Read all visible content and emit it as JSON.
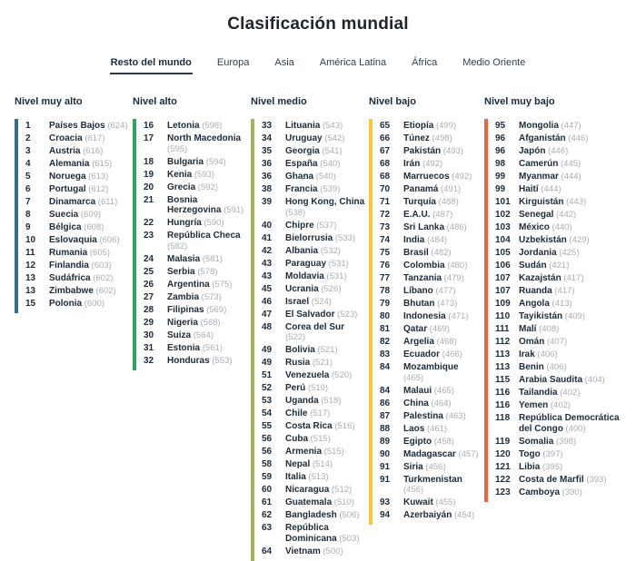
{
  "page": {
    "title": "Clasificación mundial"
  },
  "tabs": [
    {
      "label": "Resto del mundo",
      "active": true
    },
    {
      "label": "Europa",
      "active": false
    },
    {
      "label": "Asia",
      "active": false
    },
    {
      "label": "América Latina",
      "active": false
    },
    {
      "label": "África",
      "active": false
    },
    {
      "label": "Medio Oriente",
      "active": false
    }
  ],
  "levels": [
    {
      "header": "Nivel muy alto",
      "color": "#2d7190",
      "items": [
        {
          "rank": "1",
          "country": "Países Bajos",
          "score": 624
        },
        {
          "rank": "2",
          "country": "Croacia",
          "score": 617
        },
        {
          "rank": "3",
          "country": "Austria",
          "score": 616
        },
        {
          "rank": "4",
          "country": "Alemania",
          "score": 615
        },
        {
          "rank": "5",
          "country": "Noruega",
          "score": 613
        },
        {
          "rank": "6",
          "country": "Portugal",
          "score": 612
        },
        {
          "rank": "7",
          "country": "Dinamarca",
          "score": 611
        },
        {
          "rank": "8",
          "country": "Suecia",
          "score": 609
        },
        {
          "rank": "9",
          "country": "Bélgica",
          "score": 608
        },
        {
          "rank": "10",
          "country": "Eslovaquia",
          "score": 606
        },
        {
          "rank": "11",
          "country": "Rumania",
          "score": 605
        },
        {
          "rank": "12",
          "country": "Finlandia",
          "score": 603
        },
        {
          "rank": "13",
          "country": "Sudáfrica",
          "score": 602
        },
        {
          "rank": "13",
          "country": "Zimbabwe",
          "score": 602
        },
        {
          "rank": "15",
          "country": "Polonia",
          "score": 600
        }
      ]
    },
    {
      "header": "Nivel alto",
      "color": "#2ea75c",
      "items": [
        {
          "rank": "16",
          "country": "Letonia",
          "score": 598
        },
        {
          "rank": "17",
          "country": "North Macedonia",
          "score": 595
        },
        {
          "rank": "18",
          "country": "Bulgaria",
          "score": 594
        },
        {
          "rank": "19",
          "country": "Kenia",
          "score": 593
        },
        {
          "rank": "20",
          "country": "Grecia",
          "score": 592
        },
        {
          "rank": "21",
          "country": "Bosnia Herzegovina",
          "score": 591
        },
        {
          "rank": "22",
          "country": "Hungría",
          "score": 590
        },
        {
          "rank": "23",
          "country": "República Checa",
          "score": 582
        },
        {
          "rank": "24",
          "country": "Malasia",
          "score": 581
        },
        {
          "rank": "25",
          "country": "Serbia",
          "score": 578
        },
        {
          "rank": "26",
          "country": "Argentina",
          "score": 575
        },
        {
          "rank": "27",
          "country": "Zambia",
          "score": 573
        },
        {
          "rank": "28",
          "country": "Filipinas",
          "score": 569
        },
        {
          "rank": "29",
          "country": "Nigeria",
          "score": 568
        },
        {
          "rank": "30",
          "country": "Suiza",
          "score": 564
        },
        {
          "rank": "31",
          "country": "Estonia",
          "score": 561
        },
        {
          "rank": "32",
          "country": "Honduras",
          "score": 553
        }
      ]
    },
    {
      "header": "Nivel medio",
      "color": "#a1b35f",
      "items": [
        {
          "rank": "33",
          "country": "Lituania",
          "score": 543
        },
        {
          "rank": "34",
          "country": "Uruguay",
          "score": 542
        },
        {
          "rank": "35",
          "country": "Georgia",
          "score": 541
        },
        {
          "rank": "36",
          "country": "España",
          "score": 540
        },
        {
          "rank": "36",
          "country": "Ghana",
          "score": 540
        },
        {
          "rank": "38",
          "country": "Francia",
          "score": 539
        },
        {
          "rank": "39",
          "country": "Hong Kong, China",
          "score": 538
        },
        {
          "rank": "40",
          "country": "Chipre",
          "score": 537
        },
        {
          "rank": "41",
          "country": "Bielorrusia",
          "score": 533
        },
        {
          "rank": "42",
          "country": "Albania",
          "score": 532
        },
        {
          "rank": "43",
          "country": "Paraguay",
          "score": 531
        },
        {
          "rank": "43",
          "country": "Moldavia",
          "score": 531
        },
        {
          "rank": "45",
          "country": "Ucrania",
          "score": 526
        },
        {
          "rank": "46",
          "country": "Israel",
          "score": 524
        },
        {
          "rank": "47",
          "country": "El Salvador",
          "score": 523
        },
        {
          "rank": "48",
          "country": "Corea del Sur",
          "score": 522
        },
        {
          "rank": "49",
          "country": "Bolivia",
          "score": 521
        },
        {
          "rank": "49",
          "country": "Rusia",
          "score": 521
        },
        {
          "rank": "51",
          "country": "Venezuela",
          "score": 520
        },
        {
          "rank": "52",
          "country": "Perú",
          "score": 519
        },
        {
          "rank": "53",
          "country": "Uganda",
          "score": 518
        },
        {
          "rank": "54",
          "country": "Chile",
          "score": 517
        },
        {
          "rank": "55",
          "country": "Costa Rica",
          "score": 516
        },
        {
          "rank": "56",
          "country": "Cuba",
          "score": 515
        },
        {
          "rank": "56",
          "country": "Armenia",
          "score": 515
        },
        {
          "rank": "58",
          "country": "Nepal",
          "score": 514
        },
        {
          "rank": "59",
          "country": "Italia",
          "score": 513
        },
        {
          "rank": "60",
          "country": "Nicaragua",
          "score": 512
        },
        {
          "rank": "61",
          "country": "Guatemala",
          "score": 510
        },
        {
          "rank": "62",
          "country": "Bangladesh",
          "score": 506
        },
        {
          "rank": "63",
          "country": "República Dominicana",
          "score": 503
        },
        {
          "rank": "64",
          "country": "Vietnam",
          "score": 500
        }
      ]
    },
    {
      "header": "Nivel bajo",
      "color": "#fec62e",
      "items": [
        {
          "rank": "65",
          "country": "Etiopía",
          "score": 499
        },
        {
          "rank": "66",
          "country": "Túnez",
          "score": 498
        },
        {
          "rank": "67",
          "country": "Pakistán",
          "score": 493
        },
        {
          "rank": "68",
          "country": "Irán",
          "score": 492
        },
        {
          "rank": "68",
          "country": "Marruecos",
          "score": 492
        },
        {
          "rank": "70",
          "country": "Panamá",
          "score": 491
        },
        {
          "rank": "71",
          "country": "Turquía",
          "score": 488
        },
        {
          "rank": "72",
          "country": "E.A.U.",
          "score": 487
        },
        {
          "rank": "73",
          "country": "Sri Lanka",
          "score": 486
        },
        {
          "rank": "74",
          "country": "India",
          "score": 484
        },
        {
          "rank": "75",
          "country": "Brasil",
          "score": 482
        },
        {
          "rank": "76",
          "country": "Colombia",
          "score": 480
        },
        {
          "rank": "77",
          "country": "Tanzania",
          "score": 479
        },
        {
          "rank": "78",
          "country": "Líbano",
          "score": 477
        },
        {
          "rank": "79",
          "country": "Bhutan",
          "score": 473
        },
        {
          "rank": "80",
          "country": "Indonesia",
          "score": 471
        },
        {
          "rank": "81",
          "country": "Qatar",
          "score": 469
        },
        {
          "rank": "82",
          "country": "Argelia",
          "score": 468
        },
        {
          "rank": "83",
          "country": "Ecuador",
          "score": 466
        },
        {
          "rank": "84",
          "country": "Mozambique",
          "score": 465
        },
        {
          "rank": "84",
          "country": "Malaui",
          "score": 465
        },
        {
          "rank": "86",
          "country": "China",
          "score": 464
        },
        {
          "rank": "87",
          "country": "Palestina",
          "score": 463
        },
        {
          "rank": "88",
          "country": "Laos",
          "score": 461
        },
        {
          "rank": "89",
          "country": "Egipto",
          "score": 458
        },
        {
          "rank": "90",
          "country": "Madagascar",
          "score": 457
        },
        {
          "rank": "91",
          "country": "Siria",
          "score": 456
        },
        {
          "rank": "91",
          "country": "Turkmenistan",
          "score": 456
        },
        {
          "rank": "93",
          "country": "Kuwait",
          "score": 455
        },
        {
          "rank": "94",
          "country": "Azerbaiyán",
          "score": 454
        }
      ]
    },
    {
      "header": "Nivel muy bajo",
      "color": "#f2603a",
      "items": [
        {
          "rank": "95",
          "country": "Mongolia",
          "score": 447
        },
        {
          "rank": "96",
          "country": "Afganistán",
          "score": 446
        },
        {
          "rank": "96",
          "country": "Japón",
          "score": 446
        },
        {
          "rank": "98",
          "country": "Camerún",
          "score": 445
        },
        {
          "rank": "99",
          "country": "Myanmar",
          "score": 444
        },
        {
          "rank": "99",
          "country": "Haití",
          "score": 444
        },
        {
          "rank": "101",
          "country": "Kirguistán",
          "score": 443
        },
        {
          "rank": "102",
          "country": "Senegal",
          "score": 442
        },
        {
          "rank": "103",
          "country": "México",
          "score": 440
        },
        {
          "rank": "104",
          "country": "Uzbekistán",
          "score": 429
        },
        {
          "rank": "105",
          "country": "Jordania",
          "score": 425
        },
        {
          "rank": "106",
          "country": "Sudán",
          "score": 421
        },
        {
          "rank": "107",
          "country": "Kazajstán",
          "score": 417
        },
        {
          "rank": "107",
          "country": "Ruanda",
          "score": 417
        },
        {
          "rank": "109",
          "country": "Angola",
          "score": 413
        },
        {
          "rank": "110",
          "country": "Tayikistán",
          "score": 409
        },
        {
          "rank": "111",
          "country": "Malí",
          "score": 408
        },
        {
          "rank": "112",
          "country": "Omán",
          "score": 407
        },
        {
          "rank": "113",
          "country": "Irak",
          "score": 406
        },
        {
          "rank": "113",
          "country": "Benin",
          "score": 406
        },
        {
          "rank": "115",
          "country": "Arabia Saudita",
          "score": 404
        },
        {
          "rank": "116",
          "country": "Tailandia",
          "score": 402
        },
        {
          "rank": "116",
          "country": "Yemen",
          "score": 402
        },
        {
          "rank": "118",
          "country": "República Democrática del Congo",
          "score": 400
        },
        {
          "rank": "119",
          "country": "Somalia",
          "score": 398
        },
        {
          "rank": "120",
          "country": "Togo",
          "score": 397
        },
        {
          "rank": "121",
          "country": "Libia",
          "score": 395
        },
        {
          "rank": "122",
          "country": "Costa de Marfil",
          "score": 393
        },
        {
          "rank": "123",
          "country": "Camboya",
          "score": 390
        }
      ]
    }
  ]
}
